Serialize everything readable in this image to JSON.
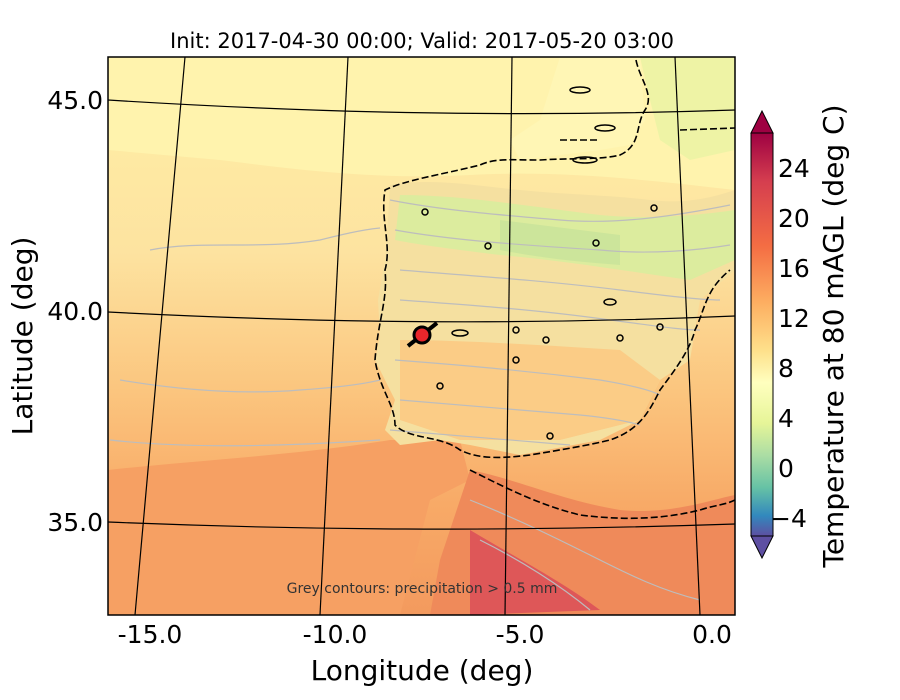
{
  "title": "Init: 2017-04-30 00:00; Valid: 2017-05-20 03:00",
  "axes": {
    "xlabel": "Longitude (deg)",
    "ylabel": "Latitude (deg)",
    "xticks": [
      "-15.0",
      "-10.0",
      "-5.0",
      "0.0"
    ],
    "yticks": [
      "45.0",
      "40.0",
      "35.0"
    ]
  },
  "colorbar": {
    "label": "Temperature at 80 mAGL (deg C)",
    "ticks": [
      "24",
      "20",
      "16",
      "12",
      "8",
      "4",
      "0",
      "−4"
    ]
  },
  "annotation": "Grey contours: precipitation > 0.5 mm",
  "colors": {
    "ocean_warm": "#f7b46c",
    "ocean_mid": "#fbd08a",
    "ocean_cool": "#fff1a8",
    "land_cool": "#d6eb9a",
    "africa_hot": "#ef8a5a",
    "marker": "#e8262b"
  },
  "marker": {
    "lon": -7.7,
    "lat": 39.3,
    "icon": "site-marker-icon"
  }
}
